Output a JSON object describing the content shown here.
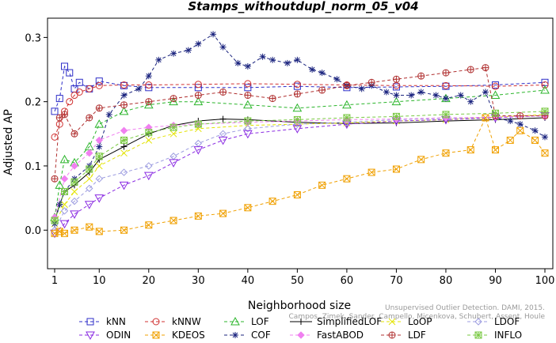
{
  "chart_data": {
    "type": "line",
    "title": "Stamps_withoutdupl_norm_05_v04",
    "xlabel": "Neighborhood size",
    "ylabel": "Adjusted AP",
    "xlim": [
      1,
      100
    ],
    "ylim": [
      -0.06,
      0.33
    ],
    "xticks": [
      "1",
      "10",
      "20",
      "30",
      "40",
      "50",
      "60",
      "70",
      "80",
      "90",
      "100"
    ],
    "yticks": [
      "0.0",
      "0.1",
      "0.2",
      "0.3"
    ],
    "watermark": [
      "Campos, Zimek, Sander, Campello, Micenkova, Schubert, Assent, Houle",
      "Unsupervised Outlier Detection. DAMI, 2015."
    ],
    "legend_position": "bottom",
    "series": [
      {
        "name": "kNN",
        "color": "#2E2EC8",
        "marker": "square",
        "line": "dashed",
        "x": [
          1,
          2,
          3,
          4,
          5,
          6,
          8,
          10,
          15,
          20,
          30,
          40,
          50,
          60,
          70,
          80,
          90,
          100
        ],
        "values": [
          0.185,
          0.205,
          0.255,
          0.245,
          0.22,
          0.23,
          0.22,
          0.232,
          0.225,
          0.222,
          0.222,
          0.222,
          0.224,
          0.222,
          0.223,
          0.224,
          0.226,
          0.23
        ]
      },
      {
        "name": "kNNW",
        "color": "#D03030",
        "marker": "circle",
        "line": "dashed",
        "x": [
          1,
          2,
          3,
          4,
          5,
          6,
          8,
          10,
          15,
          20,
          30,
          40,
          50,
          60,
          70,
          80,
          90,
          100
        ],
        "values": [
          0.145,
          0.165,
          0.185,
          0.2,
          0.21,
          0.215,
          0.22,
          0.225,
          0.226,
          0.226,
          0.227,
          0.228,
          0.227,
          0.226,
          0.225,
          0.225,
          0.224,
          0.226
        ]
      },
      {
        "name": "LOF",
        "color": "#2BB52B",
        "marker": "triangle",
        "line": "dashed",
        "x": [
          1,
          2,
          3,
          5,
          8,
          10,
          15,
          20,
          25,
          30,
          40,
          50,
          60,
          70,
          80,
          90,
          100
        ],
        "values": [
          0.02,
          0.07,
          0.11,
          0.105,
          0.13,
          0.165,
          0.185,
          0.195,
          0.2,
          0.2,
          0.195,
          0.19,
          0.195,
          0.2,
          0.205,
          0.21,
          0.218
        ]
      },
      {
        "name": "SimplifiedLOF",
        "color": "#000000",
        "marker": "plus",
        "line": "solid",
        "x": [
          1,
          2,
          3,
          5,
          8,
          10,
          15,
          20,
          25,
          30,
          35,
          40,
          50,
          60,
          70,
          80,
          90,
          100
        ],
        "values": [
          0.015,
          0.04,
          0.06,
          0.07,
          0.09,
          0.11,
          0.13,
          0.15,
          0.163,
          0.17,
          0.173,
          0.172,
          0.168,
          0.166,
          0.167,
          0.17,
          0.172,
          0.175
        ]
      },
      {
        "name": "LoOP",
        "color": "#E3E300",
        "marker": "x",
        "line": "dashed",
        "x": [
          1,
          3,
          5,
          8,
          10,
          15,
          20,
          25,
          30,
          40,
          50,
          60,
          70,
          80,
          90,
          100
        ],
        "values": [
          0.01,
          0.04,
          0.06,
          0.08,
          0.1,
          0.12,
          0.14,
          0.15,
          0.158,
          0.163,
          0.165,
          0.167,
          0.17,
          0.172,
          0.176,
          0.18
        ]
      },
      {
        "name": "LDOF",
        "color": "#9C9CE0",
        "marker": "diamond",
        "line": "dashed",
        "x": [
          1,
          3,
          5,
          8,
          10,
          15,
          20,
          25,
          30,
          35,
          40,
          50,
          60,
          70,
          80,
          90,
          100
        ],
        "values": [
          0.0,
          0.03,
          0.045,
          0.065,
          0.08,
          0.09,
          0.1,
          0.115,
          0.135,
          0.15,
          0.158,
          0.165,
          0.168,
          0.172,
          0.174,
          0.176,
          0.178
        ]
      },
      {
        "name": "ODIN",
        "color": "#8A2BE2",
        "marker": "triangle-down",
        "line": "dashed",
        "x": [
          1,
          3,
          5,
          8,
          10,
          15,
          20,
          25,
          30,
          35,
          40,
          50,
          60,
          70,
          80,
          90,
          100
        ],
        "values": [
          -0.005,
          0.01,
          0.025,
          0.04,
          0.05,
          0.07,
          0.085,
          0.105,
          0.125,
          0.14,
          0.15,
          0.158,
          0.165,
          0.17,
          0.172,
          0.175,
          0.178
        ]
      },
      {
        "name": "KDEOS",
        "color": "#F0A000",
        "marker": "square-x",
        "line": "dashed",
        "x": [
          1,
          2,
          3,
          5,
          8,
          10,
          15,
          20,
          25,
          30,
          35,
          40,
          45,
          50,
          55,
          60,
          65,
          70,
          75,
          80,
          85,
          88,
          90,
          93,
          95,
          98,
          100
        ],
        "values": [
          -0.005,
          -0.002,
          -0.005,
          0.0,
          0.005,
          -0.002,
          0.0,
          0.008,
          0.015,
          0.022,
          0.026,
          0.035,
          0.045,
          0.055,
          0.07,
          0.08,
          0.09,
          0.095,
          0.11,
          0.12,
          0.125,
          0.175,
          0.125,
          0.14,
          0.155,
          0.14,
          0.12
        ]
      },
      {
        "name": "COF",
        "color": "#1A237E",
        "marker": "star",
        "line": "dashed",
        "x": [
          1,
          2,
          3,
          5,
          8,
          10,
          12,
          15,
          18,
          20,
          22,
          25,
          28,
          30,
          33,
          35,
          38,
          40,
          43,
          45,
          48,
          50,
          53,
          55,
          58,
          60,
          63,
          65,
          68,
          70,
          73,
          75,
          78,
          80,
          83,
          85,
          88,
          90,
          93,
          95,
          98,
          100
        ],
        "values": [
          0.01,
          0.04,
          0.06,
          0.08,
          0.1,
          0.13,
          0.18,
          0.21,
          0.22,
          0.24,
          0.265,
          0.275,
          0.28,
          0.29,
          0.305,
          0.285,
          0.26,
          0.255,
          0.27,
          0.265,
          0.26,
          0.265,
          0.25,
          0.245,
          0.235,
          0.225,
          0.22,
          0.225,
          0.215,
          0.21,
          0.21,
          0.215,
          0.21,
          0.205,
          0.21,
          0.2,
          0.215,
          0.175,
          0.17,
          0.165,
          0.155,
          0.145
        ]
      },
      {
        "name": "FastABOD",
        "color": "#F080F0",
        "marker": "diamond-filled",
        "line": "dashed",
        "x": [
          1,
          3,
          5,
          8,
          10,
          15,
          20,
          25,
          30,
          40,
          50,
          60,
          70,
          80,
          90,
          100
        ],
        "values": [
          0.02,
          0.08,
          0.1,
          0.12,
          0.14,
          0.155,
          0.16,
          0.163,
          0.165,
          0.168,
          0.17,
          0.172,
          0.173,
          0.175,
          0.176,
          0.178
        ]
      },
      {
        "name": "LDF",
        "color": "#B03030",
        "marker": "circle-plus",
        "line": "dashed",
        "x": [
          1,
          2,
          3,
          5,
          8,
          10,
          15,
          20,
          25,
          30,
          35,
          40,
          45,
          50,
          55,
          60,
          65,
          70,
          75,
          80,
          85,
          88,
          90,
          95,
          100
        ],
        "values": [
          0.08,
          0.175,
          0.18,
          0.15,
          0.175,
          0.19,
          0.195,
          0.2,
          0.205,
          0.21,
          0.215,
          0.21,
          0.205,
          0.212,
          0.218,
          0.225,
          0.23,
          0.235,
          0.24,
          0.245,
          0.25,
          0.253,
          0.178,
          0.178,
          0.178
        ]
      },
      {
        "name": "INFLO",
        "color": "#7AC943",
        "marker": "square-star",
        "line": "dashed",
        "x": [
          1,
          3,
          5,
          8,
          10,
          15,
          20,
          25,
          30,
          40,
          50,
          60,
          70,
          80,
          90,
          100
        ],
        "values": [
          0.015,
          0.06,
          0.075,
          0.095,
          0.115,
          0.14,
          0.152,
          0.16,
          0.165,
          0.17,
          0.172,
          0.175,
          0.177,
          0.18,
          0.182,
          0.185
        ]
      }
    ]
  }
}
